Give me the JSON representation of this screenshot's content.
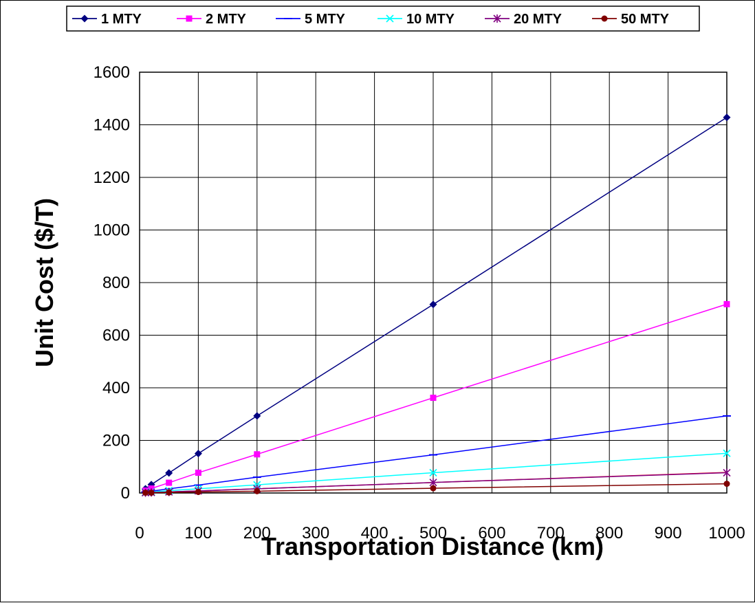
{
  "chart_data": {
    "type": "line",
    "title": "",
    "xlabel": "Transportation Distance (km)",
    "ylabel": "Unit Cost ($/T)",
    "xlim": [
      0,
      1000
    ],
    "ylim": [
      0,
      1600
    ],
    "xticks": [
      0,
      100,
      200,
      300,
      400,
      500,
      600,
      700,
      800,
      900,
      1000
    ],
    "yticks": [
      0,
      200,
      400,
      600,
      800,
      1000,
      1200,
      1400,
      1600
    ],
    "grid": true,
    "legend_position": "top",
    "x": [
      10,
      20,
      50,
      100,
      200,
      500,
      1000
    ],
    "series": [
      {
        "name": "1 MTY",
        "color": "#000080",
        "marker": "diamond",
        "values": [
          16,
          32,
          76,
          150,
          293,
          717,
          1428
        ]
      },
      {
        "name": "2 MTY",
        "color": "#FF00FF",
        "marker": "square",
        "values": [
          9,
          17,
          39,
          77,
          147,
          362,
          718
        ]
      },
      {
        "name": "5 MTY",
        "color": "#0000FF",
        "marker": "dash",
        "values": [
          4,
          7,
          16,
          30,
          60,
          145,
          293
        ]
      },
      {
        "name": "10 MTY",
        "color": "#00FFFF",
        "marker": "x",
        "values": [
          2,
          4,
          9,
          16,
          31,
          77,
          151
        ]
      },
      {
        "name": "20 MTY",
        "color": "#800080",
        "marker": "star",
        "values": [
          1,
          2,
          4,
          8,
          16,
          40,
          77
        ]
      },
      {
        "name": "50 MTY",
        "color": "#800000",
        "marker": "circle",
        "values": [
          1,
          1,
          2,
          4,
          7,
          18,
          35
        ]
      }
    ],
    "extra_line": {
      "color": "#FF0000",
      "x": [
        10,
        20,
        50,
        100,
        200,
        500,
        1000
      ],
      "values": [
        1,
        2,
        4,
        8,
        16,
        40,
        78
      ]
    }
  }
}
